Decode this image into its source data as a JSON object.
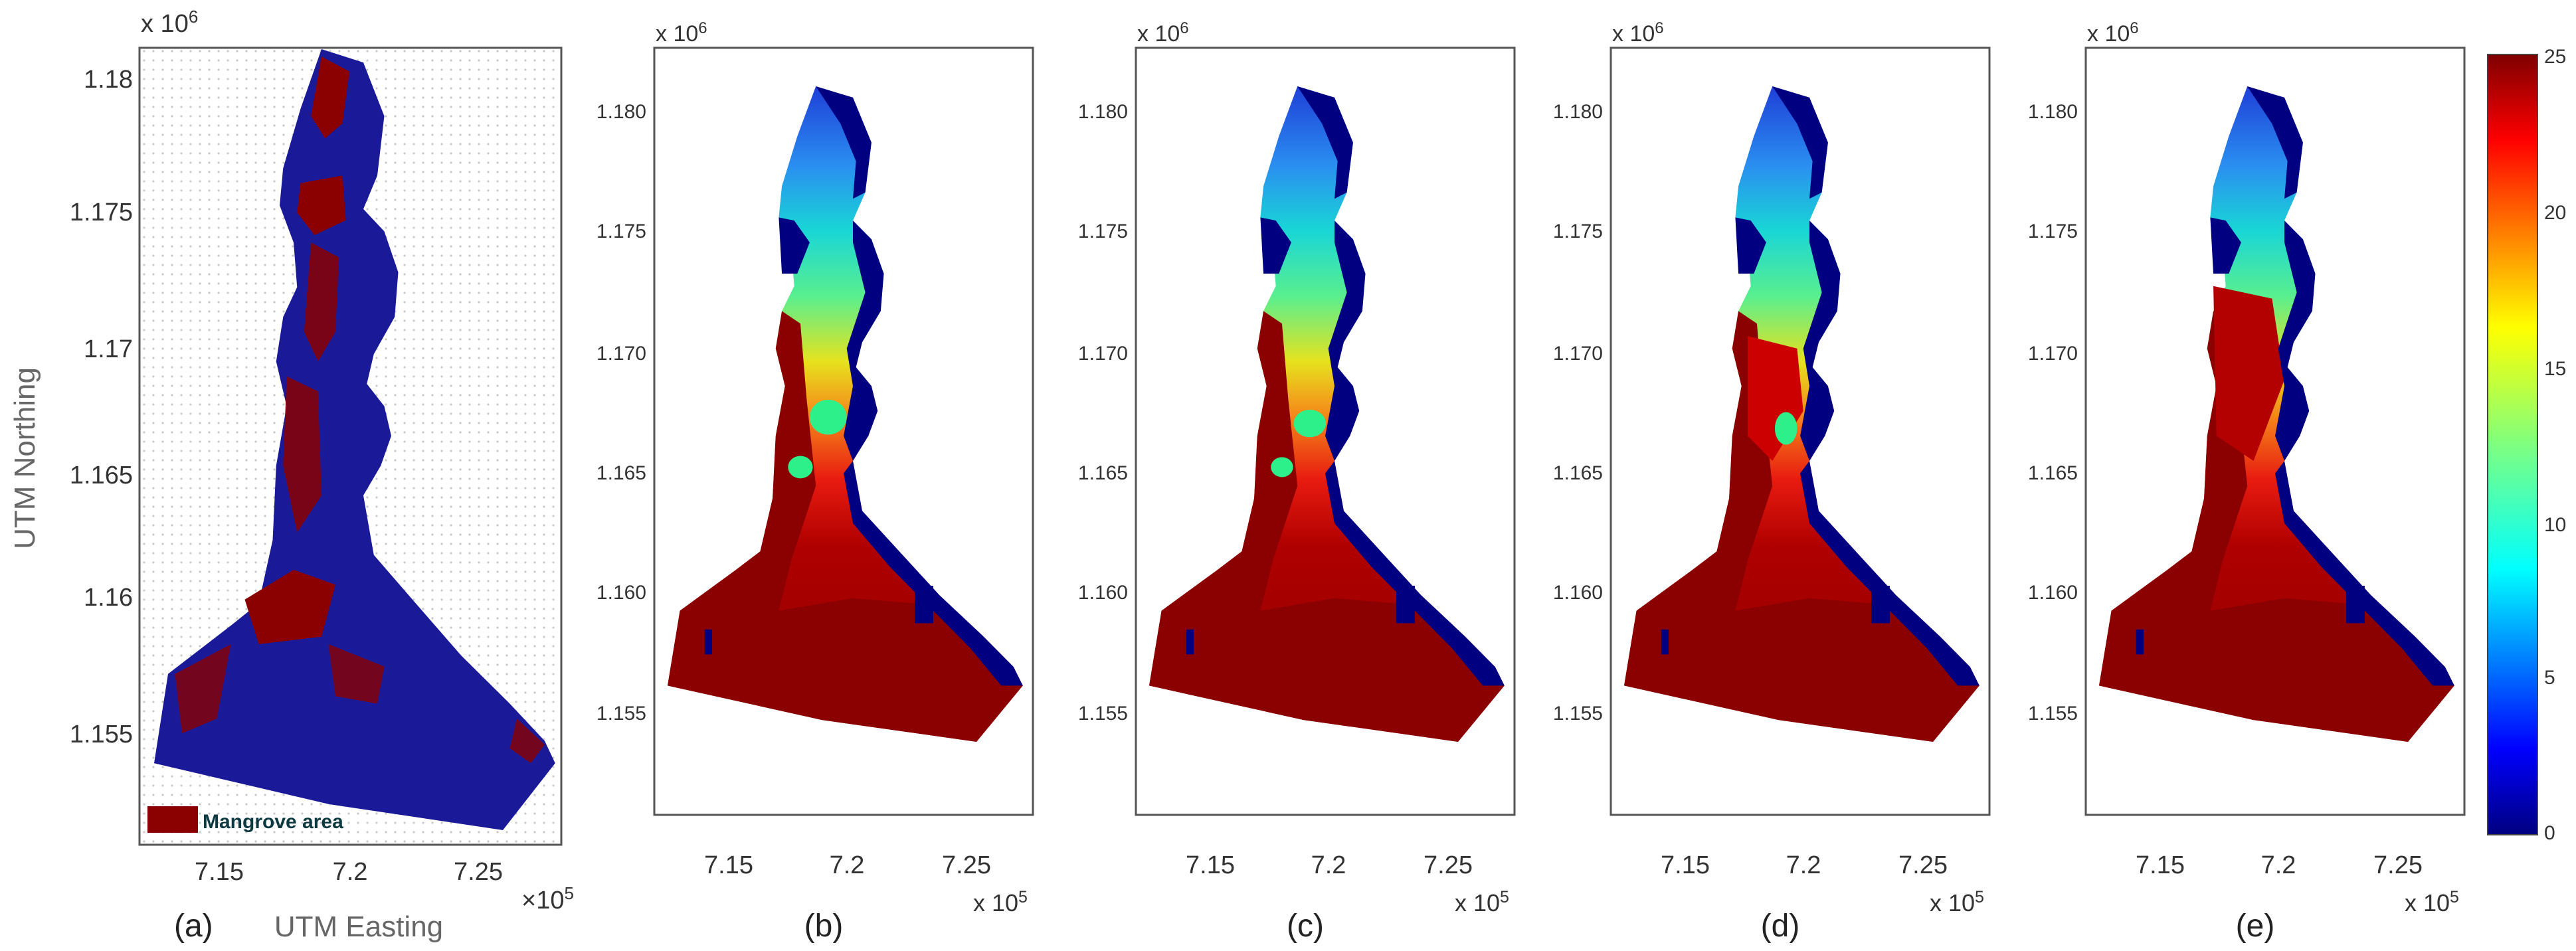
{
  "figure": {
    "panels": [
      {
        "label": "(a)",
        "title": "",
        "x_axis_label": "UTM Easting",
        "y_axis_label": "UTM Northing",
        "x_ticks": [
          "7.15",
          "7.2",
          "7.25"
        ],
        "y_ticks": [
          "1.155",
          "1.16",
          "1.165",
          "1.17",
          "1.175",
          "1.18"
        ],
        "x_multiplier": "×10",
        "x_exponent": "5",
        "y_multiplier": "x 10",
        "y_exponent": "6",
        "legend_label": "Mangrove area",
        "legend_color": "#8b0000",
        "land_color": "#1a1a99"
      },
      {
        "label": "(b)",
        "x_ticks": [
          "7.15",
          "7.2",
          "7.25"
        ],
        "y_ticks": [
          "1.155",
          "1.160",
          "1.165",
          "1.170",
          "1.175",
          "1.180"
        ],
        "x_multiplier": "x 10",
        "x_exponent": "5",
        "y_multiplier": "x 10",
        "y_exponent": "6"
      },
      {
        "label": "(c)",
        "x_ticks": [
          "7.15",
          "7.2",
          "7.25"
        ],
        "y_ticks": [
          "1.155",
          "1.160",
          "1.165",
          "1.170",
          "1.175",
          "1.180"
        ],
        "x_multiplier": "x 10",
        "x_exponent": "5",
        "y_multiplier": "x 10",
        "y_exponent": "6"
      },
      {
        "label": "(d)",
        "x_ticks": [
          "7.15",
          "7.2",
          "7.25"
        ],
        "y_ticks": [
          "1.155",
          "1.160",
          "1.165",
          "1.170",
          "1.175",
          "1.180"
        ],
        "x_multiplier": "x 10",
        "x_exponent": "5",
        "y_multiplier": "x 10",
        "y_exponent": "6"
      },
      {
        "label": "(e)",
        "x_ticks": [
          "7.15",
          "7.2",
          "7.25"
        ],
        "y_ticks": [
          "1.155",
          "1.160",
          "1.165",
          "1.170",
          "1.175",
          "1.180"
        ],
        "x_multiplier": "x 10",
        "x_exponent": "5",
        "y_multiplier": "x 10",
        "y_exponent": "6"
      }
    ],
    "colorbar": {
      "range": [
        0,
        25
      ],
      "ticks": [
        "25",
        "20",
        "15",
        "10",
        "5",
        "0"
      ],
      "colormap": "jet"
    },
    "colors": {
      "deep_water": "#000080",
      "dry_land": "#8b0000"
    }
  }
}
